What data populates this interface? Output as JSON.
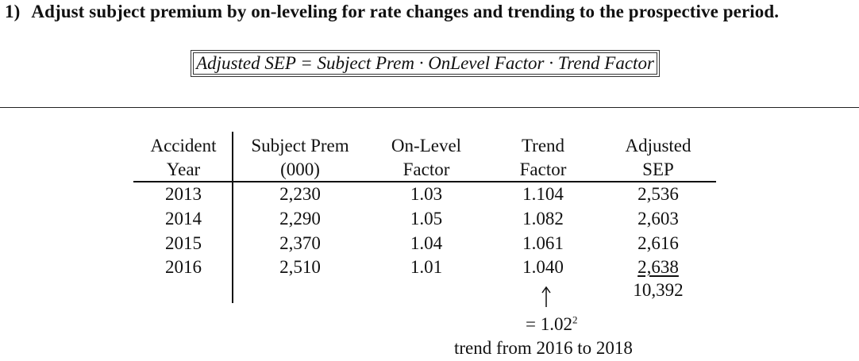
{
  "heading": {
    "number": "1)",
    "text": "Adjust subject premium by on-leveling for rate changes and trending to the prospective period."
  },
  "formula": "Adjusted SEP = Subject Prem · OnLevel Factor · Trend Factor",
  "table": {
    "headers": [
      [
        "Accident",
        "Year"
      ],
      [
        "Subject Prem",
        "(000)"
      ],
      [
        "On-Level",
        "Factor"
      ],
      [
        "Trend",
        "Factor"
      ],
      [
        "Adjusted",
        "SEP"
      ]
    ],
    "rows": [
      [
        "2013",
        "2,230",
        "1.03",
        "1.104",
        "2,536"
      ],
      [
        "2014",
        "2,290",
        "1.05",
        "1.082",
        "2,603"
      ],
      [
        "2015",
        "2,370",
        "1.04",
        "1.061",
        "2,616"
      ],
      [
        "2016",
        "2,510",
        "1.01",
        "1.040",
        "2,638"
      ]
    ],
    "total": "10,392"
  },
  "annotation": {
    "equation": "= 1.02",
    "exponent": "2",
    "caption": "trend from 2016 to 2018"
  }
}
